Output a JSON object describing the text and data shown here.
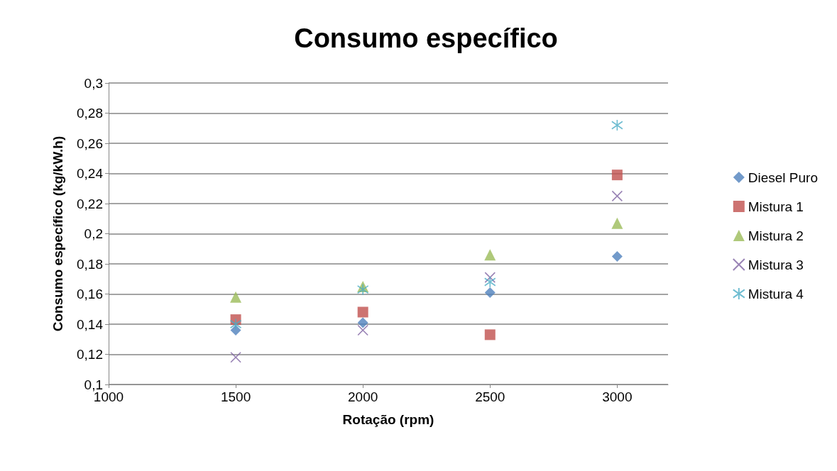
{
  "chart_data": {
    "type": "scatter",
    "title": "Consumo específico",
    "xlabel": "Rotação (rpm)",
    "ylabel": "Consumo específico (kg/kW.h)",
    "x": [
      1500,
      2000,
      2500,
      3000
    ],
    "series": [
      {
        "name": "Diesel Puro",
        "color": "#4f81bd",
        "marker": "diamond",
        "values": [
          0.136,
          0.141,
          0.161,
          0.185
        ]
      },
      {
        "name": "Mistura 1",
        "color": "#c0504d",
        "marker": "square",
        "values": [
          0.143,
          0.148,
          0.133,
          0.239
        ]
      },
      {
        "name": "Mistura 2",
        "color": "#9bbb59",
        "marker": "triangle",
        "values": [
          0.158,
          0.165,
          0.186,
          0.207
        ]
      },
      {
        "name": "Mistura 3",
        "color": "#8064a2",
        "marker": "cross",
        "values": [
          0.118,
          0.136,
          0.171,
          0.225
        ]
      },
      {
        "name": "Mistura 4",
        "color": "#4bacc6",
        "marker": "cross",
        "values": [
          0.14,
          0.163,
          0.168,
          0.272
        ]
      }
    ],
    "xlim": [
      1000,
      3200
    ],
    "xticks": [
      1000,
      1500,
      2000,
      2500,
      3000
    ],
    "ylim": [
      0.1,
      0.3
    ],
    "yticks": [
      {
        "value": 0.1,
        "label": "0,1"
      },
      {
        "value": 0.12,
        "label": "0,12"
      },
      {
        "value": 0.14,
        "label": "0,14"
      },
      {
        "value": 0.16,
        "label": "0,16"
      },
      {
        "value": 0.18,
        "label": "0,18"
      },
      {
        "value": 0.2,
        "label": "0,2"
      },
      {
        "value": 0.22,
        "label": "0,22"
      },
      {
        "value": 0.24,
        "label": "0,24"
      },
      {
        "value": 0.26,
        "label": "0,26"
      },
      {
        "value": 0.28,
        "label": "0,28"
      },
      {
        "value": 0.3,
        "label": "0,3"
      }
    ],
    "grid": "y",
    "legend": "right"
  }
}
